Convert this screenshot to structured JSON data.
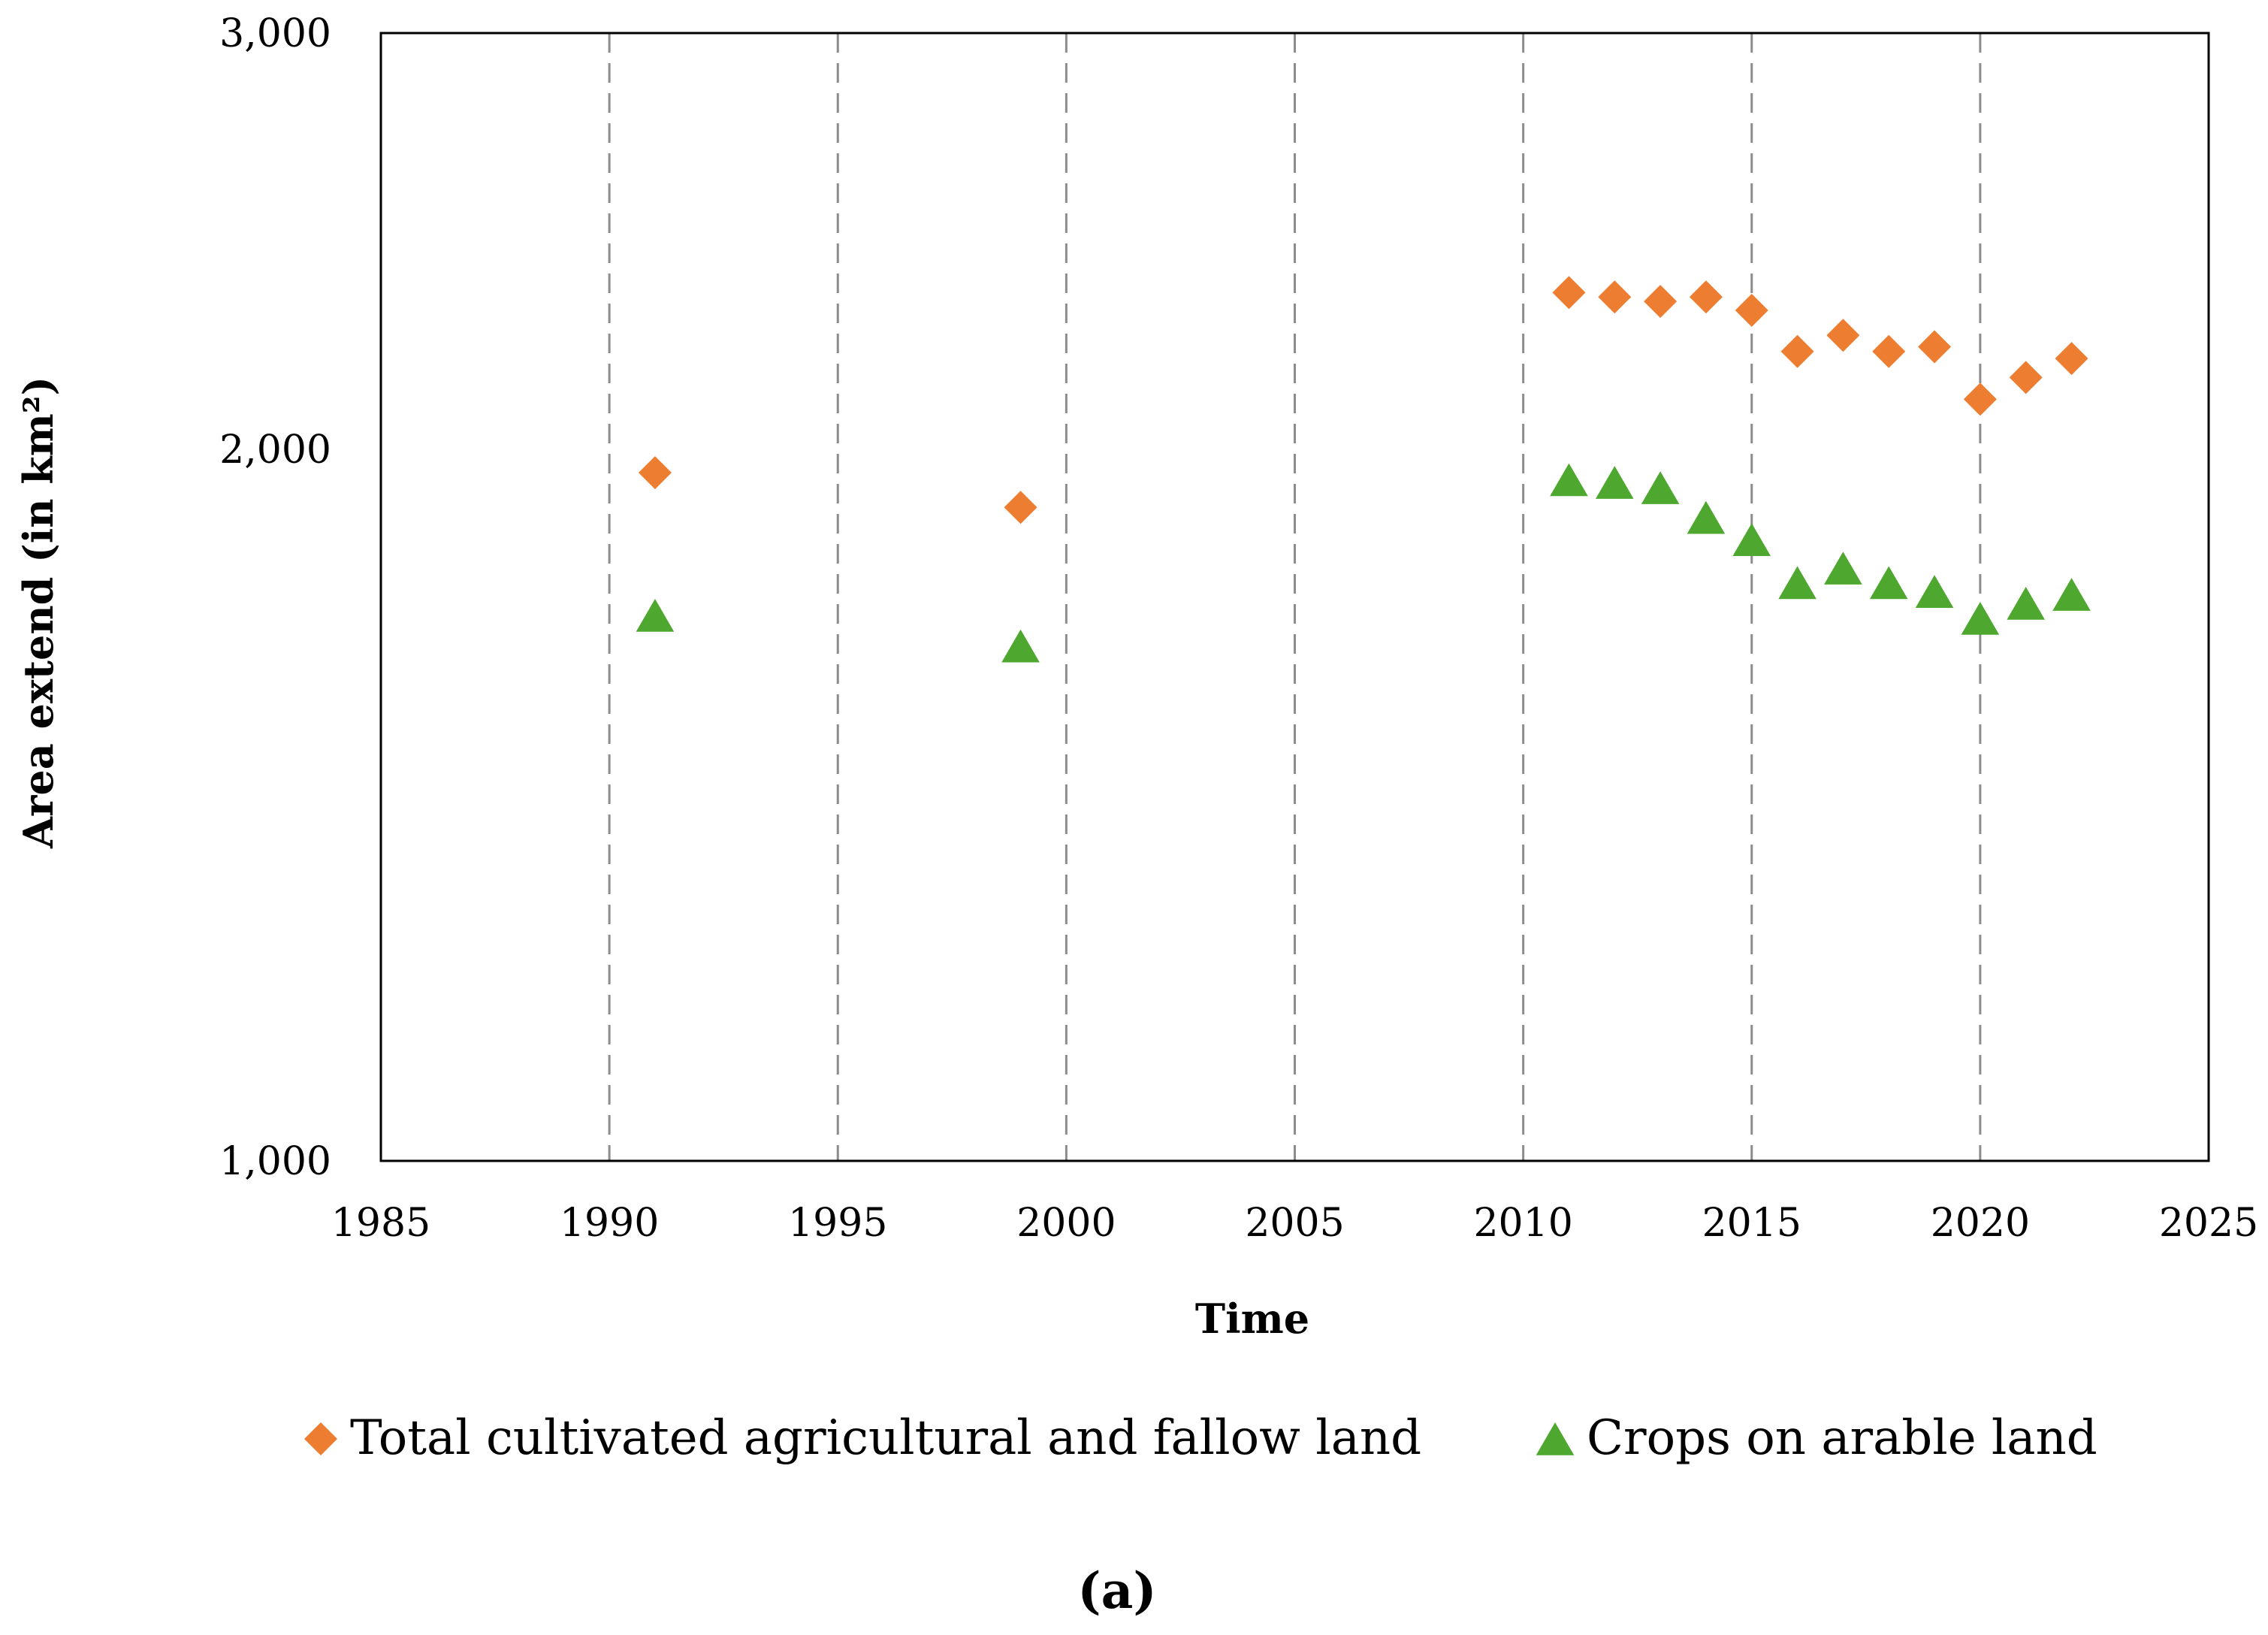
{
  "chart_data": {
    "type": "scatter",
    "panel_label": "(a)",
    "xlabel": "Time",
    "ylabel": "Area extend (in km²)",
    "xlim": [
      1985,
      2025
    ],
    "ylim": [
      1000,
      3000
    ],
    "x_ticks": [
      1985,
      1990,
      1995,
      2000,
      2005,
      2010,
      2015,
      2020,
      2025
    ],
    "x_tick_labels": [
      "1985",
      "1990",
      "1995",
      "2000",
      "2005",
      "2010",
      "2015",
      "2020",
      "2025"
    ],
    "y_ticks": [
      1000,
      2000,
      3000
    ],
    "y_tick_labels": [
      "1,000",
      "2,000",
      "3,000"
    ],
    "y_scale": "log",
    "grid": "vertical-dashed",
    "legend_position": "bottom",
    "series": [
      {
        "name": "Total cultivated agricultural and fallow land",
        "marker": "diamond",
        "color": "#ED7D31",
        "x": [
          1991,
          1999,
          2011,
          2012,
          2013,
          2014,
          2015,
          2016,
          2017,
          2018,
          2019,
          2020,
          2021,
          2022
        ],
        "y": [
          1955,
          1890,
          2330,
          2320,
          2310,
          2320,
          2290,
          2200,
          2235,
          2200,
          2210,
          2100,
          2145,
          2185
        ]
      },
      {
        "name": "Crops on arable land",
        "marker": "triangle",
        "color": "#4EA72E",
        "x": [
          1991,
          1999,
          2011,
          2012,
          2013,
          2014,
          2015,
          2016,
          2017,
          2018,
          2019,
          2020,
          2021,
          2022
        ],
        "y": [
          1700,
          1650,
          1940,
          1935,
          1925,
          1870,
          1830,
          1755,
          1780,
          1755,
          1740,
          1695,
          1720,
          1735
        ]
      }
    ]
  }
}
